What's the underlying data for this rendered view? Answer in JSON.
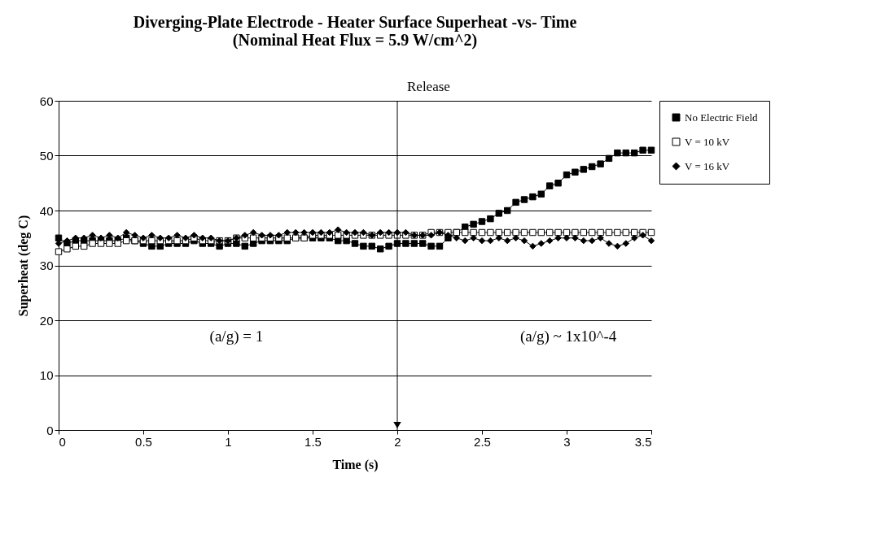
{
  "chart_data": {
    "type": "line",
    "title": "Diverging-Plate Electrode - Heater Surface Superheat -vs- Time",
    "subtitle": "(Nominal Heat Flux = 5.9 W/cm^2)",
    "xlabel": "Time (s)",
    "ylabel": "Superheat (deg C)",
    "x": [
      0,
      0.05,
      0.1,
      0.15,
      0.2,
      0.25,
      0.3,
      0.35,
      0.4,
      0.45,
      0.5,
      0.55,
      0.6,
      0.65,
      0.7,
      0.75,
      0.8,
      0.85,
      0.9,
      0.95,
      1.0,
      1.05,
      1.1,
      1.15,
      1.2,
      1.25,
      1.3,
      1.35,
      1.4,
      1.45,
      1.5,
      1.55,
      1.6,
      1.65,
      1.7,
      1.75,
      1.8,
      1.85,
      1.9,
      1.95,
      2.0,
      2.05,
      2.1,
      2.15,
      2.2,
      2.25,
      2.3,
      2.35,
      2.4,
      2.45,
      2.5,
      2.55,
      2.6,
      2.65,
      2.7,
      2.75,
      2.8,
      2.85,
      2.9,
      2.95,
      3.0,
      3.05,
      3.1,
      3.15,
      3.2,
      3.25,
      3.3,
      3.35,
      3.4,
      3.45,
      3.5
    ],
    "series": [
      {
        "name": "No Electric Field",
        "color": "#000000",
        "marker": "square",
        "values": [
          35,
          34,
          34.5,
          34.5,
          34.5,
          34.5,
          34.5,
          34.5,
          35,
          34.5,
          34,
          33.5,
          33.5,
          34,
          34,
          34,
          34.5,
          34,
          34,
          33.5,
          34,
          34,
          33.5,
          34,
          34.5,
          34.5,
          34.5,
          34.5,
          35,
          35,
          35,
          35,
          35,
          34.5,
          34.5,
          34,
          33.5,
          33.5,
          33,
          33.5,
          34,
          34,
          34,
          34,
          33.5,
          33.5,
          35,
          36,
          37,
          37.5,
          38,
          38.5,
          39.5,
          40,
          41.5,
          42,
          42.5,
          43,
          44.5,
          45,
          46.5,
          47,
          47.5,
          48,
          48.5,
          49.5,
          50.5,
          50.5,
          50.5,
          51,
          51
        ]
      },
      {
        "name": "V = 10 kV",
        "color": "#ffffff",
        "marker": "square",
        "values": [
          32.5,
          33,
          33.5,
          33.5,
          34,
          34,
          34,
          34,
          34.5,
          34.5,
          34.5,
          34.5,
          34.5,
          34.5,
          34.5,
          34.5,
          35,
          34.5,
          34.5,
          34.5,
          34.5,
          35,
          35,
          35,
          35,
          35,
          35,
          35,
          35,
          35,
          35.5,
          35.5,
          35.5,
          35.5,
          35.5,
          35.5,
          35.5,
          35.5,
          35.5,
          35.5,
          35.5,
          35.5,
          35.5,
          35.5,
          36,
          36,
          36,
          36,
          36,
          36,
          36,
          36,
          36,
          36,
          36,
          36,
          36,
          36,
          36,
          36,
          36,
          36,
          36,
          36,
          36,
          36,
          36,
          36,
          36,
          36,
          36
        ]
      },
      {
        "name": "V = 16 kV",
        "color": "#000000",
        "marker": "diamond",
        "values": [
          34,
          34.5,
          35,
          35,
          35.5,
          35,
          35.5,
          35,
          36,
          35.5,
          35,
          35.5,
          35,
          35,
          35.5,
          35,
          35.5,
          35,
          35,
          34.5,
          34.5,
          35,
          35.5,
          36,
          35.5,
          35.5,
          35.5,
          36,
          36,
          36,
          36,
          36,
          36,
          36.5,
          36,
          36,
          36,
          35.5,
          36,
          36,
          36,
          36,
          35.5,
          35.5,
          35.5,
          36,
          35.5,
          35,
          34.5,
          35,
          34.5,
          34.5,
          35,
          34.5,
          35,
          34.5,
          33.5,
          34,
          34.5,
          35,
          35,
          35,
          34.5,
          34.5,
          35,
          34,
          33.5,
          34,
          35,
          35.5,
          34.5
        ]
      }
    ],
    "xlim": [
      0,
      3.5
    ],
    "xticks": [
      0,
      0.5,
      1,
      1.5,
      2,
      2.5,
      3,
      3.5
    ],
    "ylim": [
      0,
      60
    ],
    "yticks": [
      0,
      10,
      20,
      30,
      40,
      50,
      60
    ],
    "grid": "y",
    "legend": "right",
    "ref_lines": [
      {
        "axis": "x",
        "value": 2,
        "label": "Release",
        "color": "#000000"
      }
    ],
    "annotations": [
      "(a/g) = 1",
      "(a/g) ~ 1x10^-4"
    ]
  }
}
